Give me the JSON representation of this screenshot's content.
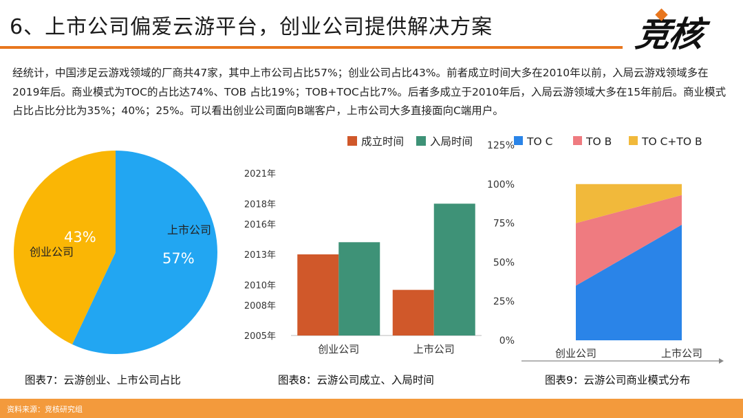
{
  "header": {
    "title": "6、上市公司偏爱云游平台，创业公司提供解决方案",
    "logo_text": "竞核"
  },
  "intro_text": "经统计，中国涉足云游戏领域的厂商共47家，其中上市公司占比57%；创业公司占比43%。前者成立时间大多在2010年以前，入局云游戏领域多在2019年后。商业模式为TOC的占比达74%、TOB 占比19%；TOB+TOC占比7%。后者多成立于2010年后，入局云游领域大多在15年前后。商业模式占比占比分比为35%；40%；25%。可以看出创业公司面向B端客户，上市公司大多直接面向C端用户。",
  "captions": {
    "fig7": "图表7：云游创业、上市公司占比",
    "fig8": "图表8：云游公司成立、入局时间",
    "fig9": "图表9：云游公司商业模式分布"
  },
  "footer": {
    "source": "资料来源：竞核研究组"
  },
  "colors": {
    "accent_orange": "#E8761E",
    "pie_blue": "#22A6F2",
    "pie_yellow": "#FAB605",
    "bar_orange": "#D0582A",
    "bar_green": "#3E9277",
    "area_blue": "#2A84E8",
    "area_pink": "#EF7B80",
    "area_yellow": "#F1B93B"
  },
  "chart_data": [
    {
      "id": "fig7",
      "type": "pie",
      "slices": [
        {
          "label": "上市公司",
          "value": 57,
          "value_label": "57%",
          "color": "#22A6F2"
        },
        {
          "label": "创业公司",
          "value": 43,
          "value_label": "43%",
          "color": "#FAB605"
        }
      ]
    },
    {
      "id": "fig8",
      "type": "bar",
      "categories": [
        "创业公司",
        "上市公司"
      ],
      "series": [
        {
          "name": "成立时间",
          "color": "#D0582A",
          "values": [
            2013.0,
            2009.5
          ]
        },
        {
          "name": "入局时间",
          "color": "#3E9277",
          "values": [
            2014.2,
            2018.0
          ]
        }
      ],
      "ylim": [
        2005,
        2021
      ],
      "yticks": [
        "2005年",
        "2008年",
        "2010年",
        "2013年",
        "2016年",
        "2018年",
        "2021年"
      ],
      "ytick_values": [
        2005,
        2008,
        2010,
        2013,
        2016,
        2018,
        2021
      ],
      "legend_position": "top"
    },
    {
      "id": "fig9",
      "type": "area",
      "stacked": true,
      "x": [
        "创业公司",
        "上市公司"
      ],
      "series": [
        {
          "name": "TO C",
          "color": "#2A84E8",
          "values": [
            35,
            74
          ]
        },
        {
          "name": "TO B",
          "color": "#EF7B80",
          "values": [
            40,
            19
          ]
        },
        {
          "name": "TO C+TO B",
          "color": "#F1B93B",
          "values": [
            25,
            7
          ]
        }
      ],
      "ylim": [
        0,
        125
      ],
      "yticks": [
        "0%",
        "25%",
        "50%",
        "75%",
        "100%",
        "125%"
      ],
      "ytick_values": [
        0,
        25,
        50,
        75,
        100,
        125
      ],
      "legend_position": "top"
    }
  ]
}
